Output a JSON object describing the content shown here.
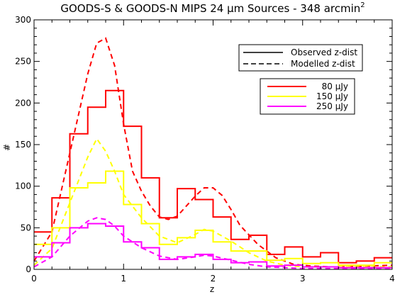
{
  "chart_data": {
    "type": "line",
    "title_prefix": "GOODS-S & GOODS-N MIPS 24 ",
    "title_mu": "μ",
    "title_mid": "m Sources - 348 arcmin",
    "title_sup": "2",
    "xlabel": "z",
    "ylabel": "#",
    "xlim": [
      0,
      4
    ],
    "ylim": [
      0,
      300
    ],
    "xticks": [
      "0",
      "1",
      "2",
      "3",
      "4"
    ],
    "yticks": [
      "0",
      "50",
      "100",
      "150",
      "200",
      "250",
      "300"
    ],
    "bin_edges": [
      0,
      0.2,
      0.4,
      0.6,
      0.8,
      1.0,
      1.2,
      1.4,
      1.6,
      1.8,
      2.0,
      2.2,
      2.4,
      2.6,
      2.8,
      3.0,
      3.2,
      3.4,
      3.6,
      3.8,
      4.0
    ],
    "series": [
      {
        "name": "80 μJy",
        "color": "#ff0000",
        "observed": [
          45,
          86,
          163,
          195,
          215,
          172,
          110,
          62,
          97,
          84,
          63,
          36,
          41,
          18,
          27,
          15,
          20,
          8,
          10,
          14
        ],
        "model_x": [
          0.0,
          0.2,
          0.4,
          0.6,
          0.7,
          0.8,
          0.9,
          1.0,
          1.1,
          1.2,
          1.3,
          1.4,
          1.5,
          1.6,
          1.7,
          1.8,
          1.9,
          2.0,
          2.1,
          2.2,
          2.3,
          2.5,
          2.7,
          2.9,
          3.1,
          3.3,
          3.5,
          3.7,
          4.0
        ],
        "model_y": [
          10,
          45,
          140,
          235,
          272,
          278,
          245,
          175,
          118,
          94,
          76,
          63,
          60,
          64,
          76,
          88,
          98,
          98,
          89,
          72,
          53,
          30,
          14,
          6,
          4,
          3,
          3,
          4,
          5
        ]
      },
      {
        "name": "150 μJy",
        "color": "#ffff00",
        "observed": [
          30,
          50,
          98,
          104,
          118,
          78,
          55,
          30,
          38,
          47,
          33,
          22,
          22,
          11,
          13,
          7,
          8,
          5,
          5,
          8
        ],
        "model_x": [
          0.0,
          0.2,
          0.4,
          0.6,
          0.7,
          0.8,
          0.9,
          1.0,
          1.2,
          1.4,
          1.6,
          1.8,
          1.9,
          2.0,
          2.2,
          2.4,
          2.6,
          2.8,
          3.0,
          3.2,
          3.5,
          4.0
        ],
        "model_y": [
          5,
          25,
          80,
          135,
          157,
          142,
          118,
          90,
          62,
          40,
          32,
          42,
          48,
          46,
          34,
          20,
          10,
          5,
          3,
          3,
          3,
          3
        ]
      },
      {
        "name": "250 μJy",
        "color": "#ff00ff",
        "observed": [
          15,
          32,
          50,
          55,
          52,
          33,
          26,
          12,
          15,
          18,
          12,
          8,
          9,
          4,
          5,
          3,
          3,
          2,
          2,
          2
        ],
        "model_x": [
          0.0,
          0.2,
          0.4,
          0.6,
          0.7,
          0.8,
          0.9,
          1.0,
          1.2,
          1.4,
          1.6,
          1.8,
          1.9,
          2.0,
          2.2,
          2.4,
          2.6,
          2.8,
          3.0,
          3.2,
          3.5,
          4.0
        ],
        "model_y": [
          3,
          15,
          40,
          58,
          62,
          60,
          52,
          40,
          26,
          16,
          12,
          15,
          17,
          16,
          11,
          6,
          3,
          2,
          1,
          1,
          1,
          1
        ]
      }
    ],
    "legend_styles": {
      "observed": "Observed z-dist",
      "modelled": "Modelled z-dist"
    },
    "grid": false
  }
}
